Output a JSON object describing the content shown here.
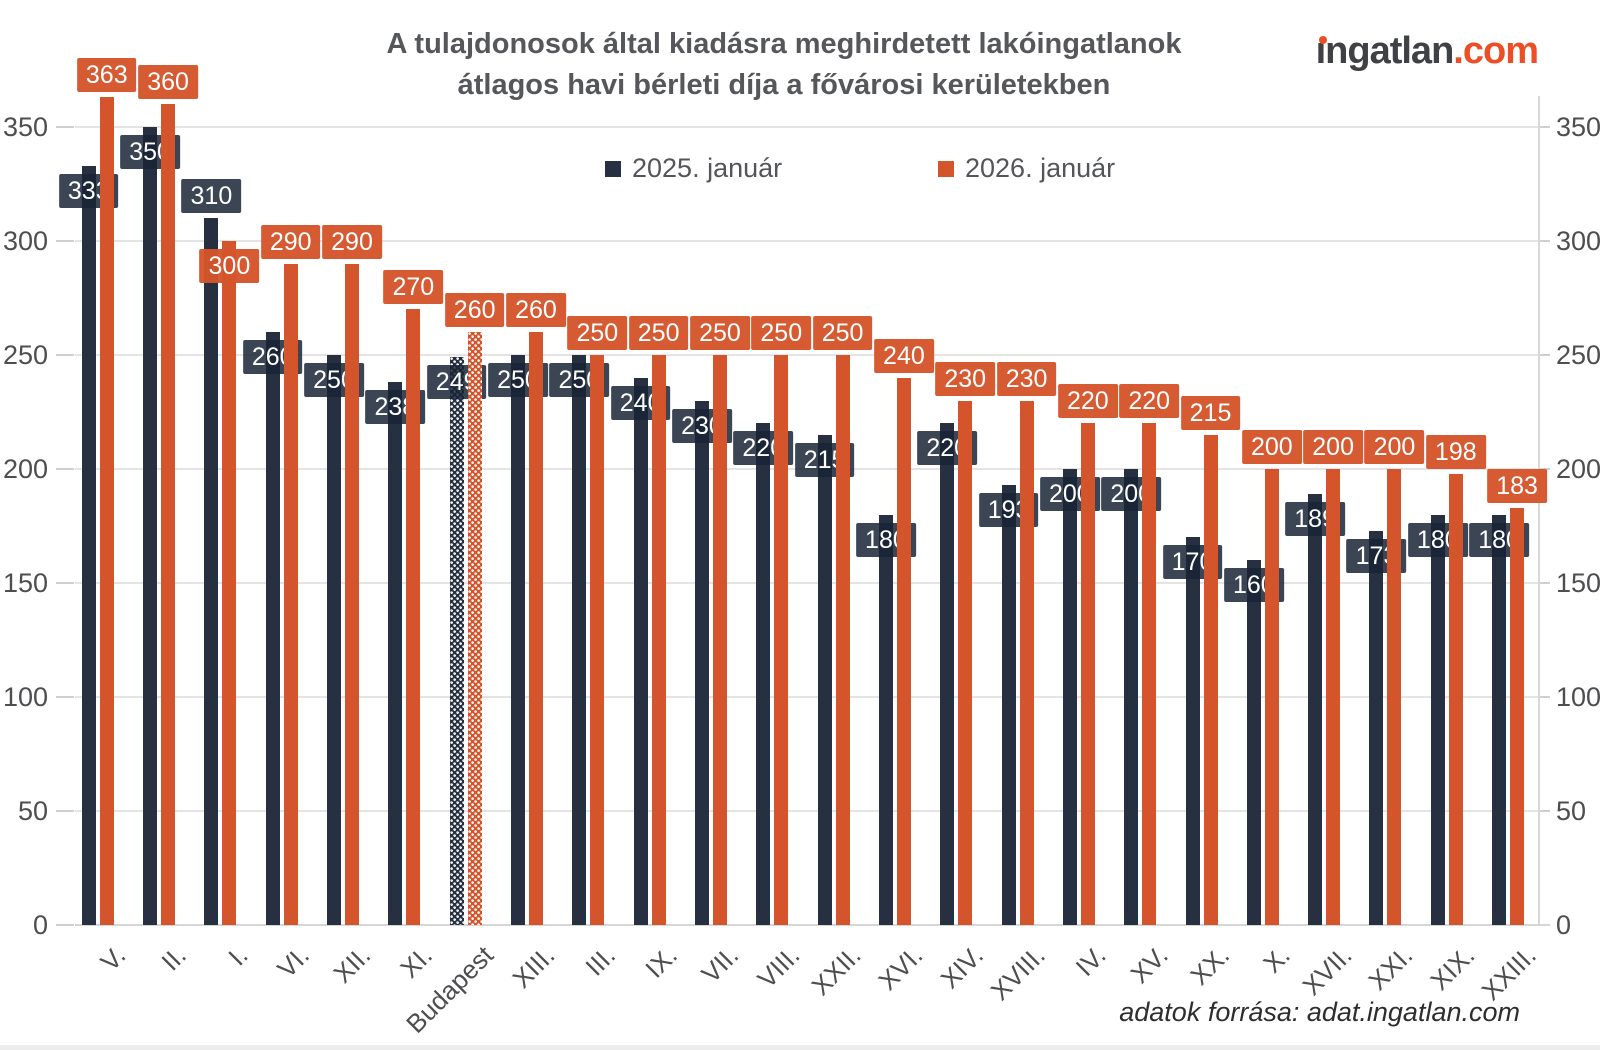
{
  "header": {
    "title_line1": "A tulajdonosok által kiadásra meghirdetett lakóingatlanok",
    "title_line2": "átlagos havi bérleti díja a fővárosi kerületekben",
    "logo": {
      "main": "ıngatlan",
      "suffix": ".com",
      "dark_color": "#3f4144",
      "accent_color": "#ec4e26"
    }
  },
  "legend": {
    "items": [
      {
        "label": "2025. január",
        "color": "#273040"
      },
      {
        "label": "2026. január",
        "color": "#d4542b"
      }
    ]
  },
  "footer": {
    "source": "adatok forrása: adat.ingatlan.com"
  },
  "chart_data": {
    "type": "bar",
    "title": "A tulajdonosok által kiadásra meghirdetett lakóingatlanok átlagos havi bérleti díja a fővárosi kerületekben",
    "categories": [
      "V.",
      "II.",
      "I.",
      "VI.",
      "XII.",
      "XI.",
      "Budapest",
      "XIII.",
      "III.",
      "IX.",
      "VII.",
      "VIII.",
      "XXII.",
      "XVI.",
      "XIV.",
      "XVIII.",
      "IV.",
      "XV.",
      "XX.",
      "X.",
      "XVII.",
      "XXI.",
      "XIX.",
      "XXIII."
    ],
    "series": [
      {
        "name": "2025. január",
        "color": "#273040",
        "values": [
          333,
          350,
          310,
          260,
          250,
          238,
          249,
          250,
          250,
          240,
          230,
          220,
          215,
          180,
          220,
          193,
          200,
          200,
          170,
          160,
          189,
          173,
          180,
          180
        ]
      },
      {
        "name": "2026. január",
        "color": "#d4542b",
        "values": [
          363,
          360,
          300,
          290,
          290,
          270,
          260,
          260,
          250,
          250,
          250,
          250,
          250,
          240,
          230,
          230,
          220,
          220,
          215,
          200,
          200,
          200,
          198,
          183
        ]
      }
    ],
    "highlight_category": "Budapest",
    "y_ticks": [
      0,
      50,
      100,
      150,
      200,
      250,
      300,
      350
    ],
    "ylim": [
      0,
      350
    ],
    "grid": true,
    "legend_position": "top",
    "value_labels": true,
    "y_axis_sides": "both"
  }
}
